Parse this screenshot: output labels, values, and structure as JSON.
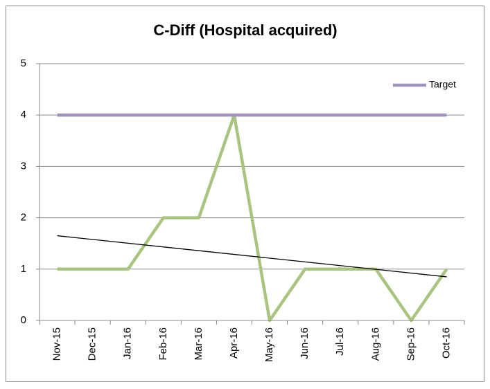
{
  "chart_data": {
    "type": "line",
    "title": "C-Diff (Hospital acquired)",
    "categories": [
      "Nov-15",
      "Dec-15",
      "Jan-16",
      "Feb-16",
      "Mar-16",
      "Apr-16",
      "May-16",
      "Jun-16",
      "Jul-16",
      "Aug-16",
      "Sep-16",
      "Oct-16"
    ],
    "series": [
      {
        "color": "#a9c47f",
        "values": [
          1,
          1,
          1,
          2,
          2,
          4,
          0,
          1,
          1,
          1,
          0,
          1
        ]
      },
      {
        "name": "Target",
        "color": "#a193be",
        "values": [
          4,
          4,
          4,
          4,
          4,
          4,
          4,
          4,
          4,
          4,
          4,
          4
        ]
      }
    ],
    "trendline": {
      "color": "#000000",
      "start": 1.65,
      "end": 0.85
    },
    "ylim": [
      0,
      5
    ],
    "yticks": [
      0,
      1,
      2,
      3,
      4,
      5
    ],
    "grid": true,
    "legend": "top-right"
  }
}
